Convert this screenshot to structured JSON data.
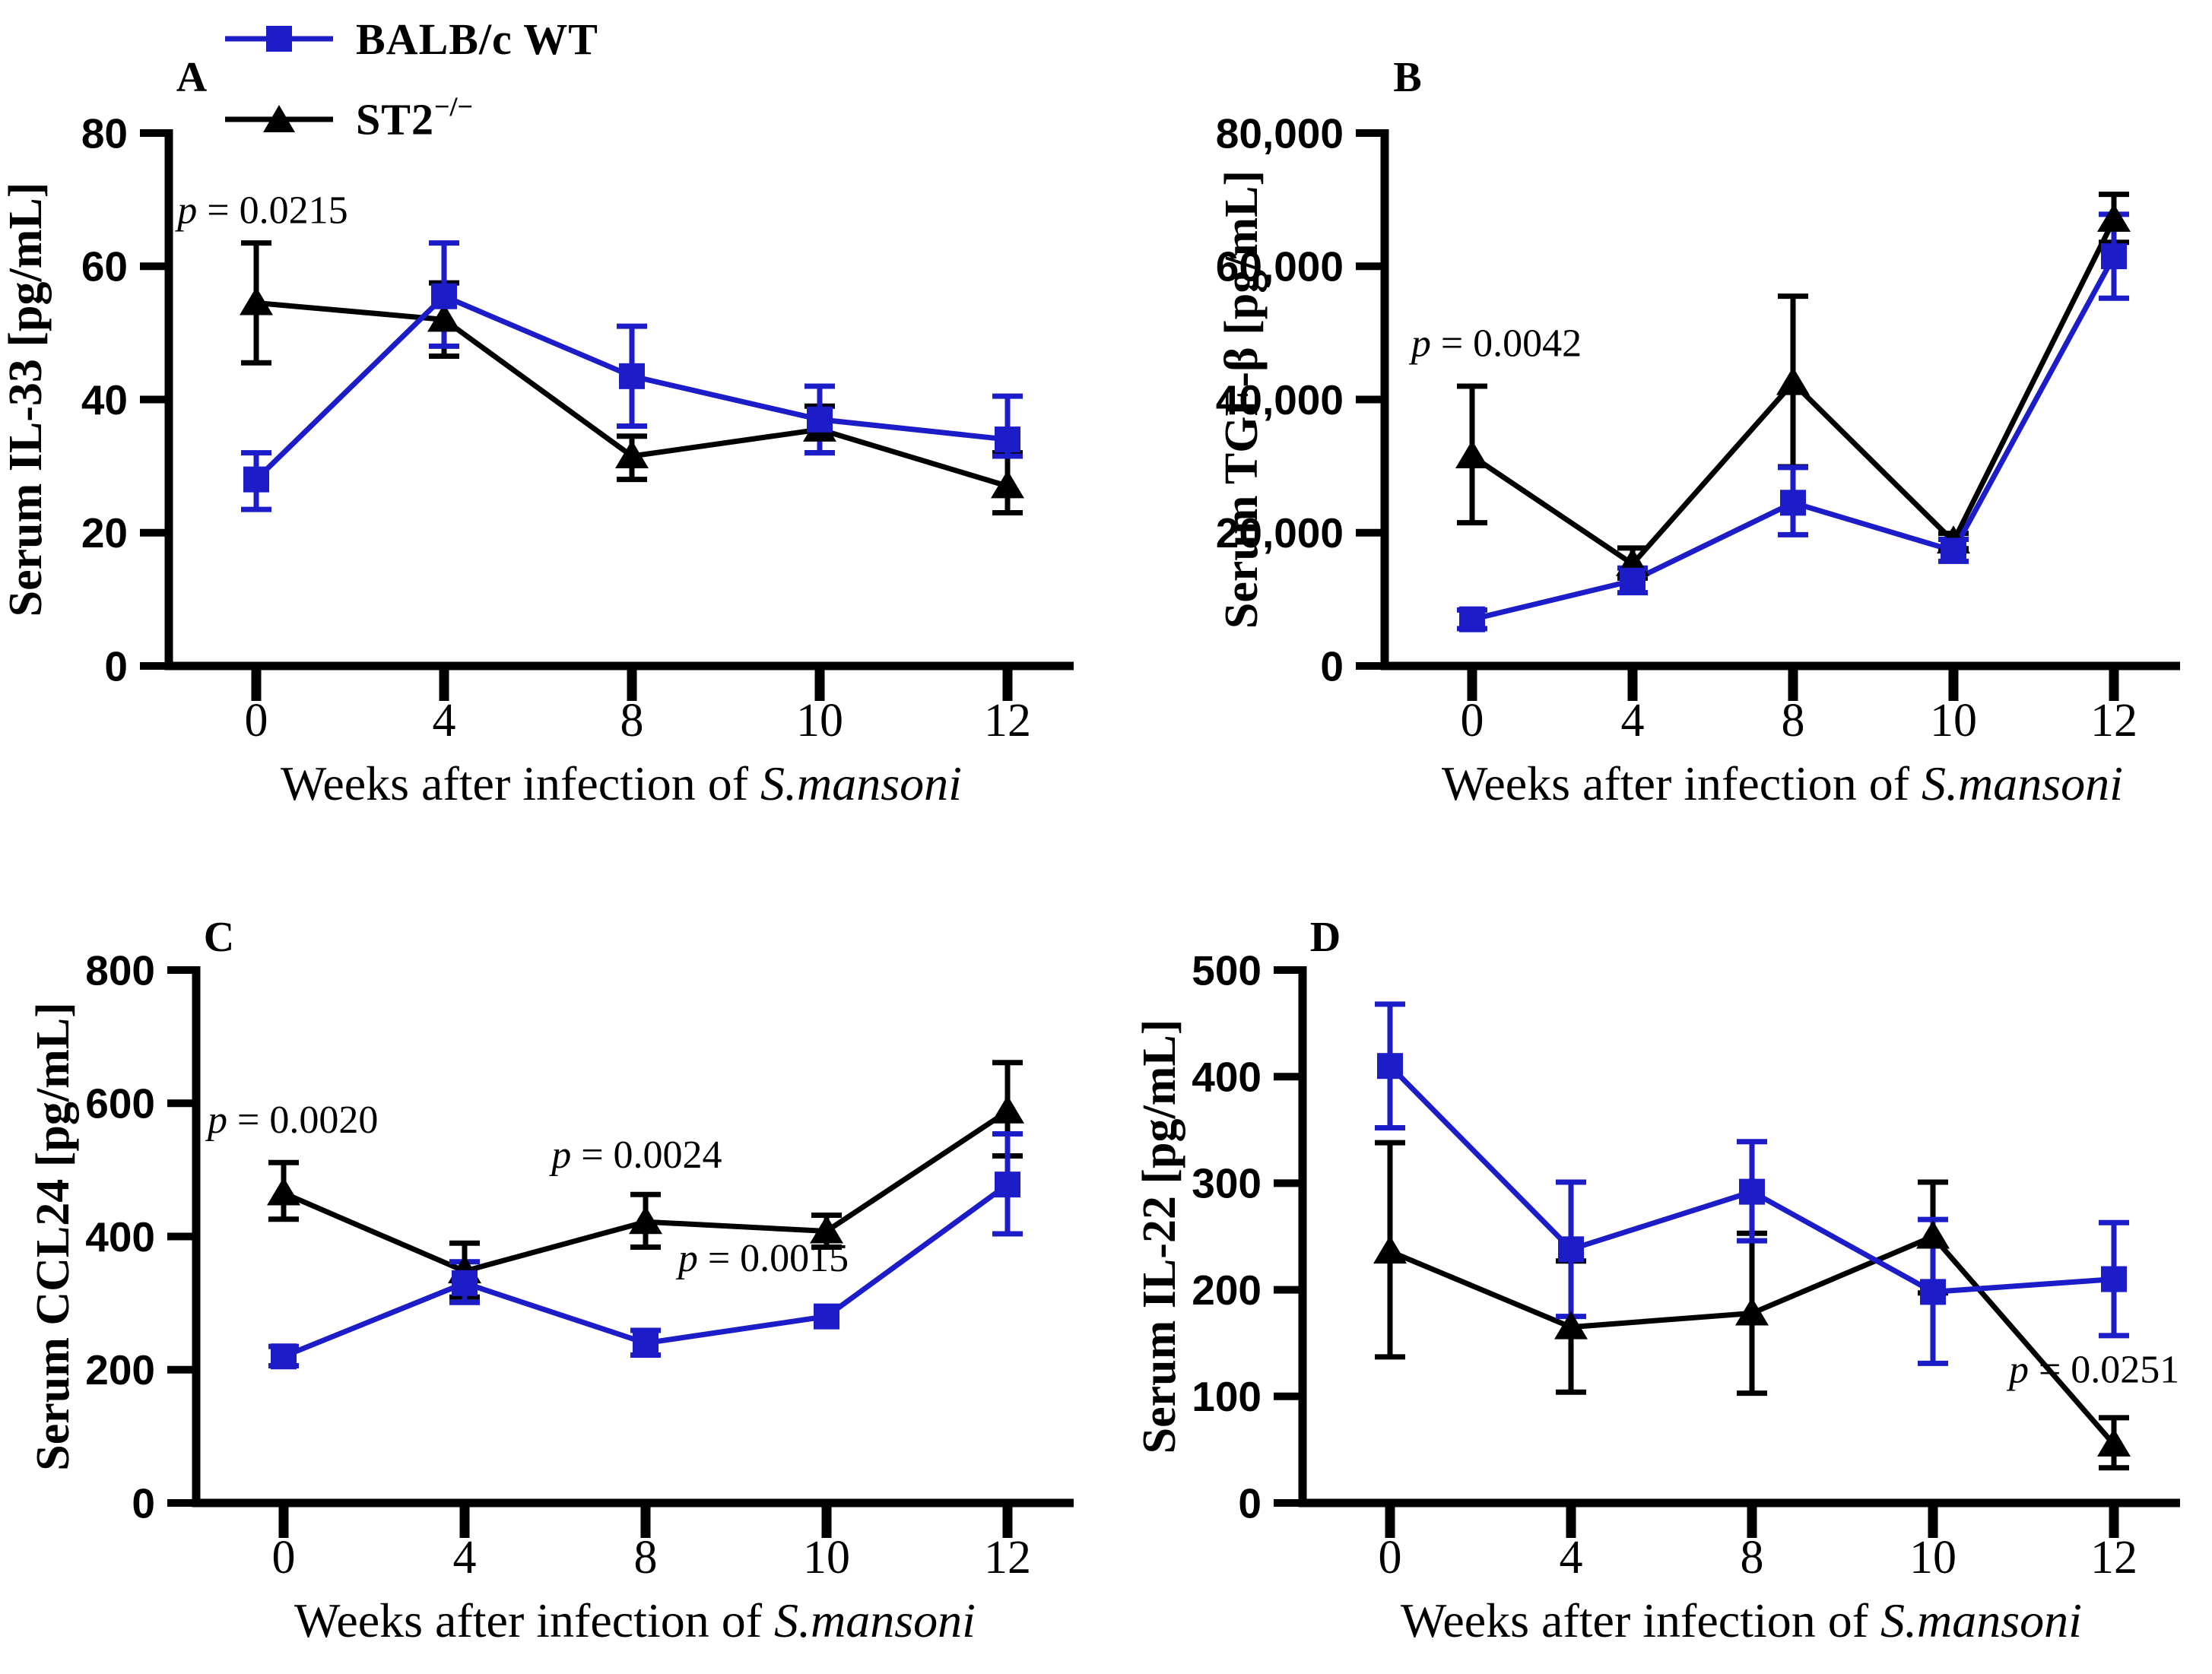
{
  "figure": {
    "background": "#ffffff"
  },
  "colors": {
    "wt_blue": "#1C1CC8",
    "st2_black": "#000000",
    "axis": "#000000"
  },
  "legend": {
    "position": "top-left",
    "items": [
      {
        "label": "BALB/c WT",
        "color": "#1C1CC8",
        "marker": "square"
      },
      {
        "label_base": "ST2",
        "label_sup": "−/−",
        "color": "#000000",
        "marker": "triangle"
      }
    ]
  },
  "chart_data": [
    {
      "type": "line",
      "panel_label": "A",
      "row": "top",
      "ylabel": "Serum IL-33 [pg/mL]",
      "xlabel": "Weeks after infection of S.mansoni",
      "xlabel_prefix": "Weeks after infection of ",
      "xlabel_italic": "S.mansoni",
      "categories": [
        "0",
        "4",
        "8",
        "10",
        "12"
      ],
      "ylim": [
        0,
        80
      ],
      "yticks": [
        0,
        20,
        40,
        60,
        80
      ],
      "ytick_format": "plain",
      "grid": false,
      "series": [
        {
          "name": "ST2−/−",
          "color": "#000000",
          "marker": "triangle",
          "values": [
            54.5,
            52,
            31.5,
            35.5,
            27
          ],
          "err_lo": [
            45.5,
            46.5,
            28,
            32,
            23
          ],
          "err_hi": [
            63.5,
            57.5,
            34.5,
            39,
            32
          ]
        },
        {
          "name": "BALB/c WT",
          "color": "#1C1CC8",
          "marker": "square",
          "values": [
            28,
            55.5,
            43.5,
            37,
            34
          ],
          "err_lo": [
            23.5,
            48,
            36,
            32,
            31.5
          ],
          "err_hi": [
            32,
            63.5,
            51,
            42,
            40.5
          ]
        }
      ],
      "annotations": [
        {
          "text": "p = 0.0215",
          "x": -0.42,
          "y": 66.5
        }
      ]
    },
    {
      "type": "line",
      "panel_label": "B",
      "row": "top",
      "ylabel": "Serum TGF-β [pg/mL]",
      "xlabel": "Weeks after infection of S.mansoni",
      "xlabel_prefix": "Weeks after infection of ",
      "xlabel_italic": "S.mansoni",
      "categories": [
        "0",
        "4",
        "8",
        "10",
        "12"
      ],
      "ylim": [
        0,
        80000
      ],
      "yticks": [
        0,
        20000,
        40000,
        60000,
        80000
      ],
      "ytick_format": "comma",
      "grid": false,
      "series": [
        {
          "name": "ST2−/−",
          "color": "#000000",
          "marker": "triangle",
          "values": [
            31500,
            15300,
            42500,
            18700,
            67000
          ],
          "err_lo": [
            21500,
            13200,
            29900,
            17600,
            63600
          ],
          "err_hi": [
            42000,
            17700,
            55500,
            19900,
            70800
          ]
        },
        {
          "name": "BALB/c WT",
          "color": "#1C1CC8",
          "marker": "square",
          "values": [
            7000,
            12800,
            24500,
            17300,
            61500
          ],
          "err_lo": [
            5600,
            11000,
            19700,
            15700,
            55200
          ],
          "err_hi": [
            8400,
            14700,
            29800,
            19000,
            67800
          ]
        }
      ],
      "annotations": [
        {
          "text": "p = 0.0042",
          "x": -0.38,
          "y": 46500
        }
      ]
    },
    {
      "type": "line",
      "panel_label": "C",
      "row": "bottom",
      "ylabel": "Serum CCL24 [pg/mL]",
      "xlabel": "Weeks after infection of S.mansoni",
      "xlabel_prefix": "Weeks after infection of ",
      "xlabel_italic": "S.mansoni",
      "categories": [
        "0",
        "4",
        "8",
        "10",
        "12"
      ],
      "ylim": [
        0,
        800
      ],
      "yticks": [
        0,
        200,
        400,
        600,
        800
      ],
      "ytick_format": "plain",
      "grid": false,
      "series": [
        {
          "name": "ST2−/−",
          "color": "#000000",
          "marker": "triangle",
          "values": [
            465,
            348,
            422,
            408,
            588
          ],
          "err_lo": [
            426,
            309,
            384,
            384,
            521
          ],
          "err_hi": [
            511,
            390,
            463,
            432,
            661
          ]
        },
        {
          "name": "BALB/c WT",
          "color": "#1C1CC8",
          "marker": "square",
          "values": [
            220,
            330,
            240,
            280,
            478
          ],
          "err_lo": [
            206,
            301,
            222,
            280,
            404
          ],
          "err_hi": [
            235,
            362,
            259,
            280,
            554
          ]
        }
      ],
      "annotations": [
        {
          "text": "p = 0.0020",
          "x": -0.42,
          "y": 556
        },
        {
          "text": "p = 0.0024",
          "x": 1.48,
          "y": 503
        },
        {
          "text": "p = 0.0015",
          "x": 2.18,
          "y": 348
        }
      ]
    },
    {
      "type": "line",
      "panel_label": "D",
      "row": "bottom",
      "ylabel": "Serum IL-22 [pg/mL]",
      "xlabel": "Weeks after infection of S.mansoni",
      "xlabel_prefix": "Weeks after infection of ",
      "xlabel_italic": "S.mansoni",
      "categories": [
        "0",
        "4",
        "8",
        "10",
        "12"
      ],
      "ylim": [
        0,
        500
      ],
      "yticks": [
        0,
        100,
        200,
        300,
        400,
        500
      ],
      "ytick_format": "plain",
      "grid": false,
      "series": [
        {
          "name": "ST2−/−",
          "color": "#000000",
          "marker": "triangle",
          "values": [
            236,
            165,
            178,
            250,
            55
          ],
          "err_lo": [
            137,
            104,
            103,
            197,
            33
          ],
          "err_hi": [
            338,
            227,
            253,
            301,
            80
          ]
        },
        {
          "name": "BALB/c WT",
          "color": "#1C1CC8",
          "marker": "square",
          "values": [
            410,
            238,
            292,
            198,
            210
          ],
          "err_lo": [
            352,
            175,
            246,
            131,
            157
          ],
          "err_hi": [
            468,
            301,
            339,
            266,
            263
          ]
        }
      ],
      "annotations": [
        {
          "text": "p = 0.0251",
          "x": 3.42,
          "y": 113
        }
      ]
    }
  ]
}
